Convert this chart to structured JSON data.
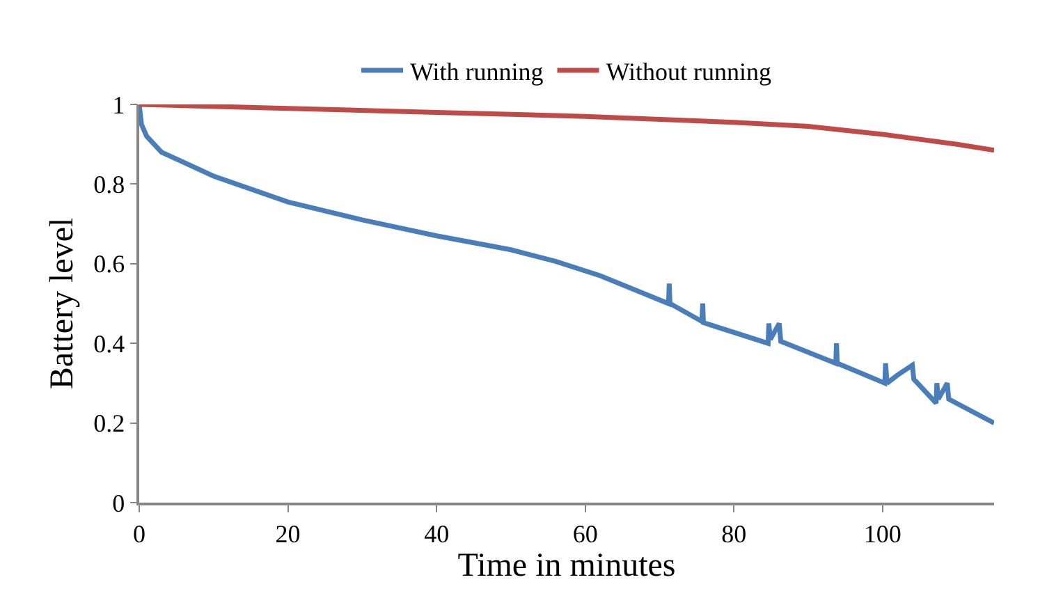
{
  "chart_data": {
    "type": "line",
    "xlabel": "Time in minutes",
    "ylabel": "Battery level",
    "xlim": [
      0,
      115
    ],
    "xticks": [
      0,
      20,
      40,
      60,
      80,
      100
    ],
    "ylim": [
      0,
      1
    ],
    "yticks": [
      0,
      0.2,
      0.4,
      0.6,
      0.8,
      1
    ],
    "legend": "top",
    "marker": "none",
    "line_style": "solid",
    "series": [
      {
        "name": "With running",
        "color": "#4a7ebb",
        "x": [
          0,
          0.3,
          1,
          3,
          10,
          20,
          30,
          40,
          50,
          56,
          62,
          71.2,
          71.3,
          71.4,
          75.7,
          75.8,
          75.9,
          84.6,
          84.7,
          84.9,
          86.1,
          86.3,
          93.7,
          93.8,
          93.9,
          100.3,
          100.4,
          100.6,
          102,
          104,
          104.2,
          107.2,
          107.3,
          107.5,
          108.7,
          108.9,
          115
        ],
        "values": [
          1,
          0.95,
          0.92,
          0.88,
          0.82,
          0.755,
          0.71,
          0.67,
          0.635,
          0.606,
          0.57,
          0.5,
          0.55,
          0.5,
          0.455,
          0.5,
          0.452,
          0.4,
          0.45,
          0.41,
          0.45,
          0.405,
          0.35,
          0.4,
          0.35,
          0.3,
          0.35,
          0.3,
          0.32,
          0.345,
          0.31,
          0.25,
          0.3,
          0.26,
          0.3,
          0.26,
          0.2
        ]
      },
      {
        "name": "Without running",
        "color": "#be4b48",
        "x": [
          0,
          20,
          40,
          60,
          80,
          90,
          100,
          110,
          115
        ],
        "values": [
          1,
          0.99,
          0.98,
          0.97,
          0.955,
          0.945,
          0.925,
          0.9,
          0.885
        ]
      }
    ]
  }
}
